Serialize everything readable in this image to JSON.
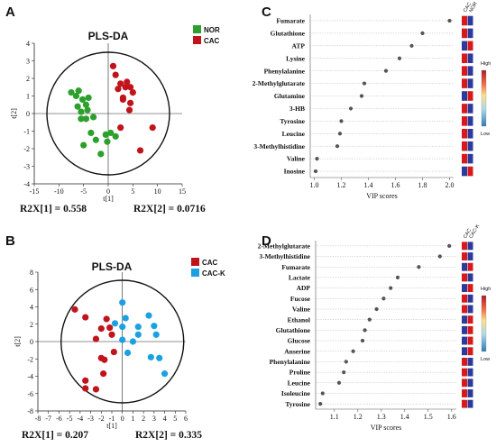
{
  "panels": {
    "A": {
      "label": "A",
      "r2x1": "R2X[1] = 0.558",
      "r2x2": "R2X[2] = 0.0716"
    },
    "B": {
      "label": "B",
      "r2x1": "R2X[1] = 0.207",
      "r2x2": "R2X[2] = 0.335"
    },
    "C": {
      "label": "C",
      "scale_high": "High",
      "scale_low": "Low",
      "heat_headers": [
        "CAC",
        "NOR"
      ]
    },
    "D": {
      "label": "D",
      "scale_high": "High",
      "scale_low": "Low",
      "heat_headers": [
        "CAC",
        "CAC-K"
      ]
    }
  },
  "colors": {
    "green": "#2ca02c",
    "red": "#c0141c",
    "blue": "#1ba1e2",
    "heat_red": "#d7191c",
    "heat_blue": "#2b3a9b"
  },
  "chart_data": [
    {
      "id": "A",
      "type": "scatter",
      "title": "PLS-DA",
      "xlabel": "t[1]",
      "ylabel": "t[2]",
      "xlim": [
        -15,
        15
      ],
      "ylim": [
        -4,
        4
      ],
      "xticks": [
        -15,
        -10,
        -5,
        0,
        5,
        10,
        15
      ],
      "yticks": [
        -4,
        -3,
        -2,
        -1,
        0,
        1,
        2,
        3,
        4
      ],
      "legend": "top-right",
      "series": [
        {
          "name": "NOR",
          "color": "#2ca02c",
          "points": [
            [
              -7.5,
              1.2
            ],
            [
              -6.5,
              1.0
            ],
            [
              -6.0,
              1.3
            ],
            [
              -5.2,
              0.8
            ],
            [
              -6.2,
              0.4
            ],
            [
              -5.5,
              0.1
            ],
            [
              -4.5,
              0.5
            ],
            [
              -4.0,
              0.9
            ],
            [
              -4.2,
              0.2
            ],
            [
              -5.5,
              -0.3
            ],
            [
              -4.5,
              -0.3
            ],
            [
              -3.0,
              -0.2
            ],
            [
              -3.5,
              -1.1
            ],
            [
              -2.5,
              -1.5
            ],
            [
              -0.5,
              -1.2
            ],
            [
              -5.0,
              -1.8
            ],
            [
              -1.5,
              -2.3
            ],
            [
              0.5,
              -1.1
            ],
            [
              1.5,
              -1.3
            ],
            [
              -0.2,
              -1.6
            ]
          ]
        },
        {
          "name": "CAC",
          "color": "#c0141c",
          "points": [
            [
              1.0,
              2.7
            ],
            [
              1.5,
              2.2
            ],
            [
              2.0,
              1.4
            ],
            [
              2.5,
              1.7
            ],
            [
              3.0,
              0.8
            ],
            [
              4.5,
              1.5
            ],
            [
              5.0,
              1.2
            ],
            [
              4.5,
              0.6
            ],
            [
              2.5,
              -0.8
            ],
            [
              3.0,
              0.9
            ],
            [
              6.5,
              -2.1
            ],
            [
              9.0,
              -0.8
            ],
            [
              4.3,
              0.2
            ],
            [
              3.5,
              1.5
            ],
            [
              3.8,
              1.8
            ]
          ]
        }
      ]
    },
    {
      "id": "B",
      "type": "scatter",
      "title": "PLS-DA",
      "xlabel": "t[1]",
      "ylabel": "t[2]",
      "xlim": [
        -8,
        6
      ],
      "ylim": [
        -8,
        8
      ],
      "xticks": [
        -8,
        -7,
        -6,
        -5,
        -4,
        -3,
        -2,
        -1,
        0,
        1,
        2,
        3,
        4,
        5,
        6
      ],
      "yticks": [
        -8,
        -6,
        -4,
        -2,
        0,
        2,
        4,
        6,
        8
      ],
      "legend": "top-right",
      "series": [
        {
          "name": "CAC",
          "color": "#c0141c",
          "points": [
            [
              -4.5,
              3.7
            ],
            [
              -3.5,
              2.8
            ],
            [
              -1.5,
              2.6
            ],
            [
              -2.0,
              1.5
            ],
            [
              -1.2,
              1.6
            ],
            [
              -1.0,
              0.8
            ],
            [
              -2.5,
              0.3
            ],
            [
              -2.0,
              -1.9
            ],
            [
              -1.7,
              -2.1
            ],
            [
              -0.8,
              -1.2
            ],
            [
              -1.8,
              -3.7
            ],
            [
              -3.5,
              -4.5
            ],
            [
              -2.5,
              -5.5
            ],
            [
              -3.5,
              -5.4
            ]
          ]
        },
        {
          "name": "CAC-K",
          "color": "#1ba1e2",
          "points": [
            [
              0.0,
              4.5
            ],
            [
              0.3,
              2.7
            ],
            [
              -0.7,
              2.1
            ],
            [
              0.0,
              1.7
            ],
            [
              2.5,
              3.0
            ],
            [
              3.0,
              1.8
            ],
            [
              3.2,
              0.8
            ],
            [
              1.5,
              1.7
            ],
            [
              1.5,
              0.8
            ],
            [
              0.0,
              0.2
            ],
            [
              2.7,
              -1.8
            ],
            [
              3.5,
              -1.9
            ],
            [
              4.0,
              -3.7
            ],
            [
              0.5,
              -1.3
            ],
            [
              1.0,
              0.0
            ]
          ]
        }
      ]
    },
    {
      "id": "C",
      "type": "scatter",
      "xlabel": "VIP scores",
      "xlim": [
        0.97,
        2.03
      ],
      "xticks": [
        1.0,
        1.2,
        1.4,
        1.6,
        1.8,
        2.0
      ],
      "categories": [
        "Fumarate",
        "Glutathione",
        "ATP",
        "Lysine",
        "Phenylalanine",
        "2-Methylglutarate",
        "Glutamine",
        "3-HB",
        "Tyrosine",
        "Leucine",
        "3-Methylhistidine",
        "Valine",
        "Inosine"
      ],
      "values": [
        2.0,
        1.8,
        1.72,
        1.63,
        1.53,
        1.37,
        1.35,
        1.27,
        1.2,
        1.19,
        1.17,
        1.02,
        1.01
      ],
      "heatmap_headers": [
        "CAC",
        "NOR"
      ],
      "heatmap": [
        [
          "high",
          "low"
        ],
        [
          "high",
          "low"
        ],
        [
          "low",
          "high"
        ],
        [
          "high",
          "low"
        ],
        [
          "high",
          "low"
        ],
        [
          "high",
          "low"
        ],
        [
          "low",
          "high"
        ],
        [
          "high",
          "low"
        ],
        [
          "high",
          "low"
        ],
        [
          "high",
          "low"
        ],
        [
          "high",
          "low"
        ],
        [
          "high",
          "low"
        ],
        [
          "low",
          "high"
        ]
      ]
    },
    {
      "id": "D",
      "type": "scatter",
      "xlabel": "VIP scores",
      "xlim": [
        1.02,
        1.62
      ],
      "xticks": [
        1.1,
        1.2,
        1.3,
        1.4,
        1.5,
        1.6
      ],
      "categories": [
        "2-Methylglutarate",
        "3-Methylhistidine",
        "Fumarate",
        "Lactate",
        "ADP",
        "Fucose",
        "Valine",
        "Ethanol",
        "Glutathione",
        "Glucose",
        "Anserine",
        "Phenylalanine",
        "Proline",
        "Leucine",
        "Isoleucine",
        "Tyrosine"
      ],
      "values": [
        1.59,
        1.55,
        1.46,
        1.37,
        1.34,
        1.31,
        1.28,
        1.25,
        1.23,
        1.22,
        1.18,
        1.15,
        1.14,
        1.12,
        1.05,
        1.04
      ],
      "heatmap_headers": [
        "CAC",
        "CAC-K"
      ],
      "heatmap": [
        [
          "high",
          "low"
        ],
        [
          "high",
          "low"
        ],
        [
          "low",
          "high"
        ],
        [
          "high",
          "low"
        ],
        [
          "low",
          "high"
        ],
        [
          "high",
          "low"
        ],
        [
          "high",
          "low"
        ],
        [
          "low",
          "high"
        ],
        [
          "low",
          "high"
        ],
        [
          "low",
          "high"
        ],
        [
          "low",
          "high"
        ],
        [
          "high",
          "low"
        ],
        [
          "high",
          "low"
        ],
        [
          "high",
          "low"
        ],
        [
          "high",
          "low"
        ],
        [
          "high",
          "low"
        ]
      ]
    }
  ]
}
